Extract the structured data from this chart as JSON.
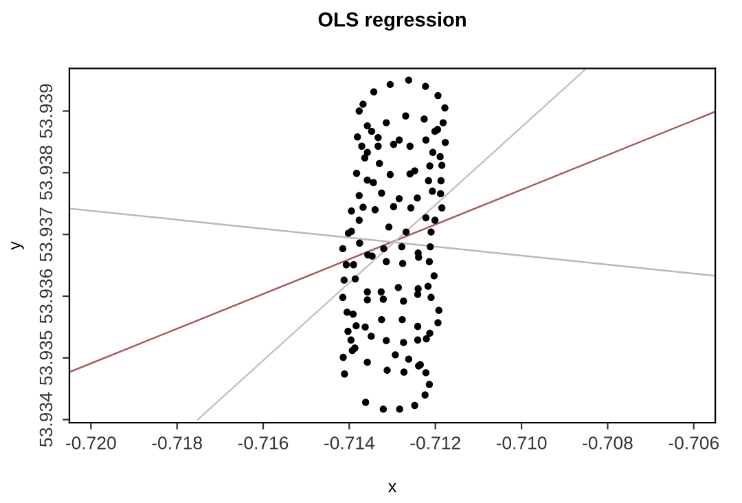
{
  "chart_data": {
    "type": "scatter",
    "title": "OLS regression",
    "xlabel": "x",
    "ylabel": "y",
    "xlim": [
      -0.7205,
      -0.7055
    ],
    "ylim": [
      53.93395,
      53.93969
    ],
    "xticks": [
      {
        "value": -0.72,
        "label": "-0.720"
      },
      {
        "value": -0.718,
        "label": "-0.718"
      },
      {
        "value": -0.716,
        "label": "-0.716"
      },
      {
        "value": -0.714,
        "label": "-0.714"
      },
      {
        "value": -0.712,
        "label": "-0.712"
      },
      {
        "value": -0.71,
        "label": "-0.710"
      },
      {
        "value": -0.708,
        "label": "-0.708"
      },
      {
        "value": -0.706,
        "label": "-0.706"
      }
    ],
    "yticks": [
      {
        "value": 53.934,
        "label": "53.934"
      },
      {
        "value": 53.935,
        "label": "53.935"
      },
      {
        "value": 53.936,
        "label": "53.936"
      },
      {
        "value": 53.937,
        "label": "53.937"
      },
      {
        "value": 53.938,
        "label": "53.938"
      },
      {
        "value": 53.939,
        "label": "53.939"
      }
    ],
    "grid": false,
    "legend": false,
    "series": [
      {
        "marker": "circle",
        "color": "#000000",
        "x": [
          -0.71262,
          -0.71305,
          -0.71223,
          -0.71343,
          -0.71194,
          -0.71368,
          -0.71178,
          -0.71377,
          -0.71314,
          -0.71269,
          -0.71226,
          -0.71182,
          -0.71358,
          -0.71348,
          -0.71333,
          -0.71195,
          -0.71201,
          -0.71381,
          -0.71222,
          -0.71284,
          -0.71297,
          -0.71177,
          -0.71371,
          -0.71333,
          -0.71259,
          -0.71358,
          -0.71206,
          -0.71189,
          -0.71364,
          -0.7133,
          -0.71213,
          -0.71185,
          -0.71383,
          -0.71305,
          -0.71259,
          -0.71248,
          -0.71216,
          -0.71187,
          -0.71358,
          -0.71344,
          -0.71207,
          -0.71188,
          -0.71325,
          -0.71377,
          -0.71284,
          -0.71242,
          -0.71368,
          -0.71297,
          -0.7134,
          -0.71257,
          -0.71185,
          -0.71395,
          -0.71222,
          -0.71201,
          -0.71377,
          -0.71308,
          -0.71268,
          -0.71395,
          -0.71402,
          -0.7121,
          -0.71376,
          -0.71415,
          -0.7132,
          -0.71278,
          -0.71212,
          -0.7124,
          -0.71357,
          -0.71347,
          -0.71239,
          -0.71407,
          -0.7139,
          -0.71314,
          -0.71276,
          -0.71214,
          -0.71203,
          -0.71412,
          -0.71386,
          -0.71217,
          -0.71286,
          -0.7124,
          -0.71241,
          -0.71358,
          -0.71326,
          -0.71415,
          -0.71358,
          -0.71321,
          -0.71274,
          -0.7121,
          -0.71192,
          -0.71405,
          -0.71391,
          -0.71325,
          -0.71277,
          -0.71194,
          -0.71363,
          -0.71403,
          -0.71384,
          -0.71241,
          -0.71213,
          -0.71349,
          -0.71396,
          -0.71314,
          -0.71274,
          -0.71241,
          -0.71221,
          -0.71387,
          -0.71393,
          -0.71293,
          -0.71414,
          -0.71262,
          -0.71358,
          -0.71235,
          -0.71239,
          -0.71411,
          -0.71312,
          -0.71273,
          -0.71222,
          -0.71214,
          -0.71224,
          -0.71362,
          -0.71248,
          -0.71321,
          -0.71283
        ],
        "values": [
          53.9395,
          53.93943,
          53.9394,
          53.93931,
          53.93925,
          53.93911,
          53.93905,
          53.939,
          53.93881,
          53.93892,
          53.93887,
          53.93881,
          53.93876,
          53.93867,
          53.93857,
          53.9387,
          53.93867,
          53.93858,
          53.93853,
          53.93853,
          53.93846,
          53.93849,
          53.93843,
          53.93843,
          53.93843,
          53.93833,
          53.93833,
          53.93826,
          53.93824,
          53.93815,
          53.93811,
          53.93812,
          53.93799,
          53.93797,
          53.93798,
          53.93803,
          53.93787,
          53.93787,
          53.93788,
          53.93784,
          53.9377,
          53.93766,
          53.93767,
          53.93763,
          53.93758,
          53.93759,
          53.93744,
          53.93745,
          53.9374,
          53.93743,
          53.93743,
          53.93738,
          53.93727,
          53.93723,
          53.93723,
          53.93712,
          53.93704,
          53.93705,
          53.93702,
          53.93704,
          53.93686,
          53.93677,
          53.93677,
          53.9368,
          53.9368,
          53.9367,
          53.93667,
          53.93665,
          53.93663,
          53.93651,
          53.93651,
          53.93656,
          53.93653,
          53.93656,
          53.93633,
          53.93626,
          53.93628,
          53.93616,
          53.93614,
          53.93612,
          53.93603,
          53.93607,
          53.93607,
          53.93598,
          53.93594,
          53.93595,
          53.93592,
          53.93598,
          53.93577,
          53.93574,
          53.93571,
          53.93562,
          53.93562,
          53.93557,
          53.9355,
          53.93543,
          53.93552,
          53.93551,
          53.9354,
          53.93535,
          53.93529,
          53.93528,
          53.93525,
          53.93529,
          53.93531,
          53.93516,
          53.93512,
          53.93505,
          53.93501,
          53.93498,
          53.93493,
          53.93489,
          53.93487,
          53.93474,
          53.9348,
          53.93477,
          53.93476,
          53.93457,
          53.9344,
          53.93428,
          53.93423,
          53.93417,
          53.93417
        ]
      },
      {
        "type": "line",
        "marker": "none",
        "color": "#a85c5c",
        "x": [
          -0.7205,
          -0.7055
        ],
        "values": [
          53.93477,
          53.93899
        ]
      },
      {
        "type": "line",
        "marker": "none",
        "color": "#c4c4c4",
        "x": [
          -0.71752,
          -0.70854
        ],
        "values": [
          53.934,
          53.93966
        ]
      },
      {
        "type": "line",
        "marker": "none",
        "color": "#b8b8b8",
        "x": [
          -0.7205,
          -0.7055
        ],
        "values": [
          53.93742,
          53.93633
        ]
      }
    ]
  }
}
